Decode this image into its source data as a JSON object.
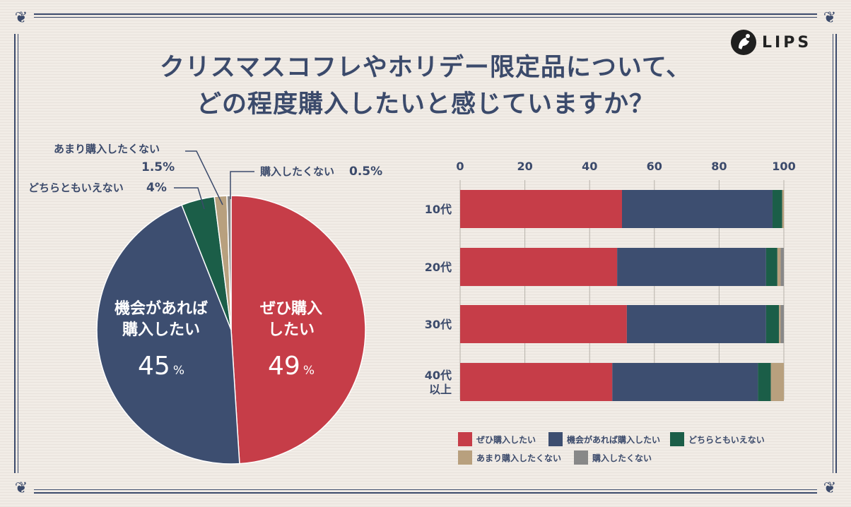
{
  "title_line1": "クリスマスコフレやホリデー限定品について、",
  "title_line2": "どの程度購入したいと感じていますか？",
  "logo_text": "LIPS",
  "chart_data": [
    {
      "type": "pie",
      "categories": [
        "ぜひ購入したい",
        "機会があれば購入したい",
        "どちらともいえない",
        "あまり購入したくない",
        "購入したくない"
      ],
      "values": [
        49,
        45,
        4,
        1.5,
        0.5
      ],
      "colors": [
        "#c63d48",
        "#3d4e70",
        "#1b5e48",
        "#b8a07e",
        "#888888"
      ],
      "labels": {
        "yes_line1": "ぜひ購入",
        "yes_line2": "したい",
        "yes_value": "49",
        "yes_unit": "%",
        "maybe_line1": "機会があれば",
        "maybe_line2": "購入したい",
        "maybe_value": "45",
        "maybe_unit": "%",
        "neutral": "どちらともいえない",
        "neutral_value": "4%",
        "rather_no": "あまり購入したくない",
        "rather_no_value": "1.5%",
        "no": "購入したくない",
        "no_value": "0.5%"
      }
    },
    {
      "type": "bar",
      "orientation": "horizontal",
      "stacked": true,
      "categories": [
        "10代",
        "20代",
        "30代",
        "40代 以上"
      ],
      "xlim": [
        0,
        100
      ],
      "xticks": [
        "0",
        "20",
        "40",
        "60",
        "80",
        "100"
      ],
      "series": [
        {
          "name": "ぜひ購入したい",
          "color": "#c63d48",
          "values": [
            50,
            48.5,
            51.5,
            47
          ]
        },
        {
          "name": "機会があれば購入したい",
          "color": "#3d4e70",
          "values": [
            46.5,
            46,
            43,
            45
          ]
        },
        {
          "name": "どちらともいえない",
          "color": "#1b5e48",
          "values": [
            3,
            3.5,
            4,
            4
          ]
        },
        {
          "name": "あまり購入したくない",
          "color": "#b8a07e",
          "values": [
            0.5,
            1,
            0.5,
            4
          ]
        },
        {
          "name": "購入したくない",
          "color": "#888888",
          "values": [
            0,
            1,
            1,
            0
          ]
        }
      ],
      "legend": "bottom",
      "grid": true
    }
  ]
}
